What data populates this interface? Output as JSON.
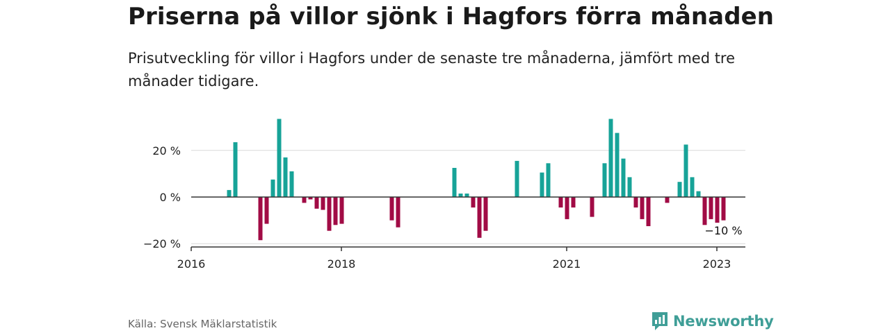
{
  "title": "Priserna på villor sjönk i Hagfors förra månaden",
  "subtitle": "Prisutveckling för villor i Hagfors under de senaste tre månaderna, jämfört med tre månader tidigare.",
  "source": "Källa: Svensk Mäklarstatistik",
  "brand": "Newsworthy",
  "colors": {
    "positive": "#17a398",
    "negative": "#a10b45",
    "grid": "#d9d9d9",
    "axis": "#333333",
    "brand": "#3f9e97"
  },
  "chart_data": {
    "type": "bar",
    "ylim": [
      -20,
      34
    ],
    "grid": true,
    "y_ticks": [
      {
        "value": 20,
        "label": "20 %"
      },
      {
        "value": 0,
        "label": "0 %"
      },
      {
        "value": -20,
        "label": "−20 %"
      }
    ],
    "x_ticks": [
      {
        "date": "2016-01",
        "label": "2016"
      },
      {
        "date": "2018-01",
        "label": "2018"
      },
      {
        "date": "2021-01",
        "label": "2021"
      },
      {
        "date": "2023-01",
        "label": "2023"
      }
    ],
    "x_range": [
      "2016-01",
      "2023-04"
    ],
    "bars": [
      {
        "date": "2016-07",
        "value": 3
      },
      {
        "date": "2016-08",
        "value": 23.5
      },
      {
        "date": "2016-12",
        "value": -18.5
      },
      {
        "date": "2017-01",
        "value": -11.5
      },
      {
        "date": "2017-02",
        "value": 7.5
      },
      {
        "date": "2017-03",
        "value": 33.5
      },
      {
        "date": "2017-04",
        "value": 17
      },
      {
        "date": "2017-05",
        "value": 11
      },
      {
        "date": "2017-07",
        "value": -2.5
      },
      {
        "date": "2017-08",
        "value": -1
      },
      {
        "date": "2017-09",
        "value": -5
      },
      {
        "date": "2017-10",
        "value": -5.5
      },
      {
        "date": "2017-11",
        "value": -14.5
      },
      {
        "date": "2017-12",
        "value": -12
      },
      {
        "date": "2018-01",
        "value": -11.5
      },
      {
        "date": "2018-09",
        "value": -10
      },
      {
        "date": "2018-10",
        "value": -13
      },
      {
        "date": "2019-07",
        "value": 12.5
      },
      {
        "date": "2019-08",
        "value": 1.5
      },
      {
        "date": "2019-09",
        "value": 1.5
      },
      {
        "date": "2019-10",
        "value": -4.5
      },
      {
        "date": "2019-11",
        "value": -17.5
      },
      {
        "date": "2019-12",
        "value": -14.5
      },
      {
        "date": "2020-05",
        "value": 15.5
      },
      {
        "date": "2020-09",
        "value": 10.5
      },
      {
        "date": "2020-10",
        "value": 14.5
      },
      {
        "date": "2020-12",
        "value": -4.5
      },
      {
        "date": "2021-01",
        "value": -9.5
      },
      {
        "date": "2021-02",
        "value": -4.5
      },
      {
        "date": "2021-05",
        "value": -8.5
      },
      {
        "date": "2021-07",
        "value": 14.5
      },
      {
        "date": "2021-08",
        "value": 33.5
      },
      {
        "date": "2021-09",
        "value": 27.5
      },
      {
        "date": "2021-10",
        "value": 16.5
      },
      {
        "date": "2021-11",
        "value": 8.5
      },
      {
        "date": "2021-12",
        "value": -4.5
      },
      {
        "date": "2022-01",
        "value": -9.5
      },
      {
        "date": "2022-02",
        "value": -12.5
      },
      {
        "date": "2022-05",
        "value": -2.5
      },
      {
        "date": "2022-07",
        "value": 6.5
      },
      {
        "date": "2022-08",
        "value": 22.5
      },
      {
        "date": "2022-09",
        "value": 8.5
      },
      {
        "date": "2022-10",
        "value": 2.5
      },
      {
        "date": "2022-11",
        "value": -12
      },
      {
        "date": "2022-12",
        "value": -9.5
      },
      {
        "date": "2023-01",
        "value": -11
      },
      {
        "date": "2023-02",
        "value": -10
      }
    ],
    "annotation": {
      "date": "2023-02",
      "label": "−10 %"
    }
  }
}
